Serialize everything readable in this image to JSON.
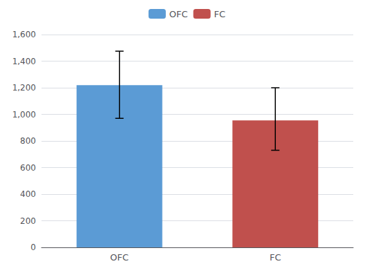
{
  "chart_data": {
    "type": "bar",
    "categories": [
      "OFC",
      "FC"
    ],
    "values": [
      1220,
      955
    ],
    "colors": [
      "#5b9bd5",
      "#c0504d"
    ],
    "errors_upper": [
      255,
      245
    ],
    "errors_lower": [
      250,
      225
    ],
    "ylim": [
      0,
      1600
    ],
    "yticks": [
      0,
      200,
      400,
      600,
      800,
      1000,
      1200,
      1400,
      1600
    ],
    "grid": true,
    "legend": "top"
  }
}
